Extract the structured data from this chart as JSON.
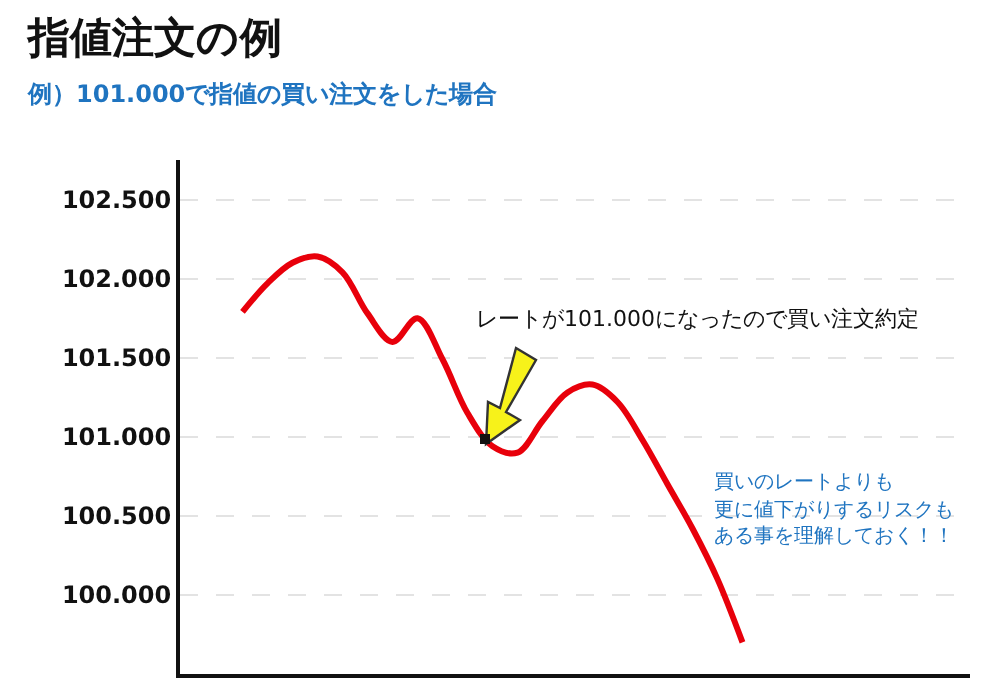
{
  "chart_data": {
    "type": "line",
    "title": "指値注文の例",
    "subtitle": "例）101.000で指値の買い注文をした場合",
    "categories": [
      null,
      null,
      null,
      null,
      null,
      null,
      null,
      null,
      null,
      null,
      null,
      null,
      null,
      null,
      null,
      null,
      null,
      null,
      null,
      null,
      null
    ],
    "series": [
      {
        "color": "#e8000b",
        "values": [
          101.79,
          101.97,
          102.1,
          102.14,
          102.04,
          101.78,
          101.6,
          101.75,
          101.49,
          101.15,
          100.94,
          100.9,
          101.1,
          101.28,
          101.33,
          101.22,
          100.98,
          100.7,
          100.42,
          100.1,
          99.7
        ]
      }
    ],
    "ylim": [
      99.5,
      102.75
    ],
    "yticks": [
      {
        "value": 100,
        "label": "100.000"
      },
      {
        "value": 100.5,
        "label": "100.500"
      },
      {
        "value": 101,
        "label": "101.000"
      },
      {
        "value": 101.5,
        "label": "101.500"
      },
      {
        "value": 102,
        "label": "102.000"
      },
      {
        "value": 102.5,
        "label": "102.500"
      }
    ],
    "grid": "y",
    "tick_labels": "y",
    "line_style": "solid",
    "annotations": [
      "レートが101.000になったので買い注文約定",
      "買いのレートよりも",
      "更に値下がりするリスクも",
      "ある事を理解しておく！！"
    ]
  }
}
